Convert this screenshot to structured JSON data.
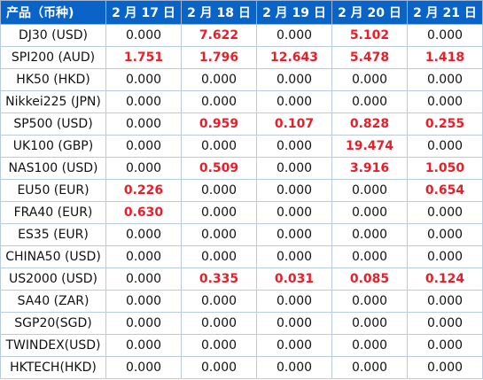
{
  "table": {
    "headers": [
      "产品（币种)",
      "2 月 17 日",
      "2 月 18 日",
      "2 月 19 日",
      "2 月 20 日",
      "2 月 21 日"
    ],
    "highlight_color": "#e6202a",
    "header_bg": "#0a63c7",
    "rows": [
      {
        "name": "DJ30 (USD)",
        "values": [
          "0.000",
          "7.622",
          "0.000",
          "5.102",
          "0.000"
        ],
        "highlight": [
          false,
          true,
          false,
          true,
          false
        ]
      },
      {
        "name": "SPI200 (AUD)",
        "values": [
          "1.751",
          "1.796",
          "12.643",
          "5.478",
          "1.418"
        ],
        "highlight": [
          true,
          true,
          true,
          true,
          true
        ]
      },
      {
        "name": "HK50 (HKD)",
        "values": [
          "0.000",
          "0.000",
          "0.000",
          "0.000",
          "0.000"
        ],
        "highlight": [
          false,
          false,
          false,
          false,
          false
        ]
      },
      {
        "name": "Nikkei225 (JPN)",
        "values": [
          "0.000",
          "0.000",
          "0.000",
          "0.000",
          "0.000"
        ],
        "highlight": [
          false,
          false,
          false,
          false,
          false
        ]
      },
      {
        "name": "SP500 (USD)",
        "values": [
          "0.000",
          "0.959",
          "0.107",
          "0.828",
          "0.255"
        ],
        "highlight": [
          false,
          true,
          true,
          true,
          true
        ]
      },
      {
        "name": "UK100 (GBP)",
        "values": [
          "0.000",
          "0.000",
          "0.000",
          "19.474",
          "0.000"
        ],
        "highlight": [
          false,
          false,
          false,
          true,
          false
        ]
      },
      {
        "name": "NAS100 (USD)",
        "values": [
          "0.000",
          "0.509",
          "0.000",
          "3.916",
          "1.050"
        ],
        "highlight": [
          false,
          true,
          false,
          true,
          true
        ]
      },
      {
        "name": "EU50 (EUR)",
        "values": [
          "0.226",
          "0.000",
          "0.000",
          "0.000",
          "0.654"
        ],
        "highlight": [
          true,
          false,
          false,
          false,
          true
        ]
      },
      {
        "name": "FRA40 (EUR)",
        "values": [
          "0.630",
          "0.000",
          "0.000",
          "0.000",
          "0.000"
        ],
        "highlight": [
          true,
          false,
          false,
          false,
          false
        ]
      },
      {
        "name": "ES35 (EUR)",
        "values": [
          "0.000",
          "0.000",
          "0.000",
          "0.000",
          "0.000"
        ],
        "highlight": [
          false,
          false,
          false,
          false,
          false
        ]
      },
      {
        "name": "CHINA50 (USD)",
        "values": [
          "0.000",
          "0.000",
          "0.000",
          "0.000",
          "0.000"
        ],
        "highlight": [
          false,
          false,
          false,
          false,
          false
        ]
      },
      {
        "name": "US2000 (USD)",
        "values": [
          "0.000",
          "0.335",
          "0.031",
          "0.085",
          "0.124"
        ],
        "highlight": [
          false,
          true,
          true,
          true,
          true
        ]
      },
      {
        "name": "SA40 (ZAR)",
        "values": [
          "0.000",
          "0.000",
          "0.000",
          "0.000",
          "0.000"
        ],
        "highlight": [
          false,
          false,
          false,
          false,
          false
        ]
      },
      {
        "name": "SGP20(SGD)",
        "values": [
          "0.000",
          "0.000",
          "0.000",
          "0.000",
          "0.000"
        ],
        "highlight": [
          false,
          false,
          false,
          false,
          false
        ]
      },
      {
        "name": "TWINDEX(USD)",
        "values": [
          "0.000",
          "0.000",
          "0.000",
          "0.000",
          "0.000"
        ],
        "highlight": [
          false,
          false,
          false,
          false,
          false
        ]
      },
      {
        "name": "HKTECH(HKD)",
        "values": [
          "0.000",
          "0.000",
          "0.000",
          "0.000",
          "0.000"
        ],
        "highlight": [
          false,
          false,
          false,
          false,
          false
        ]
      }
    ]
  }
}
